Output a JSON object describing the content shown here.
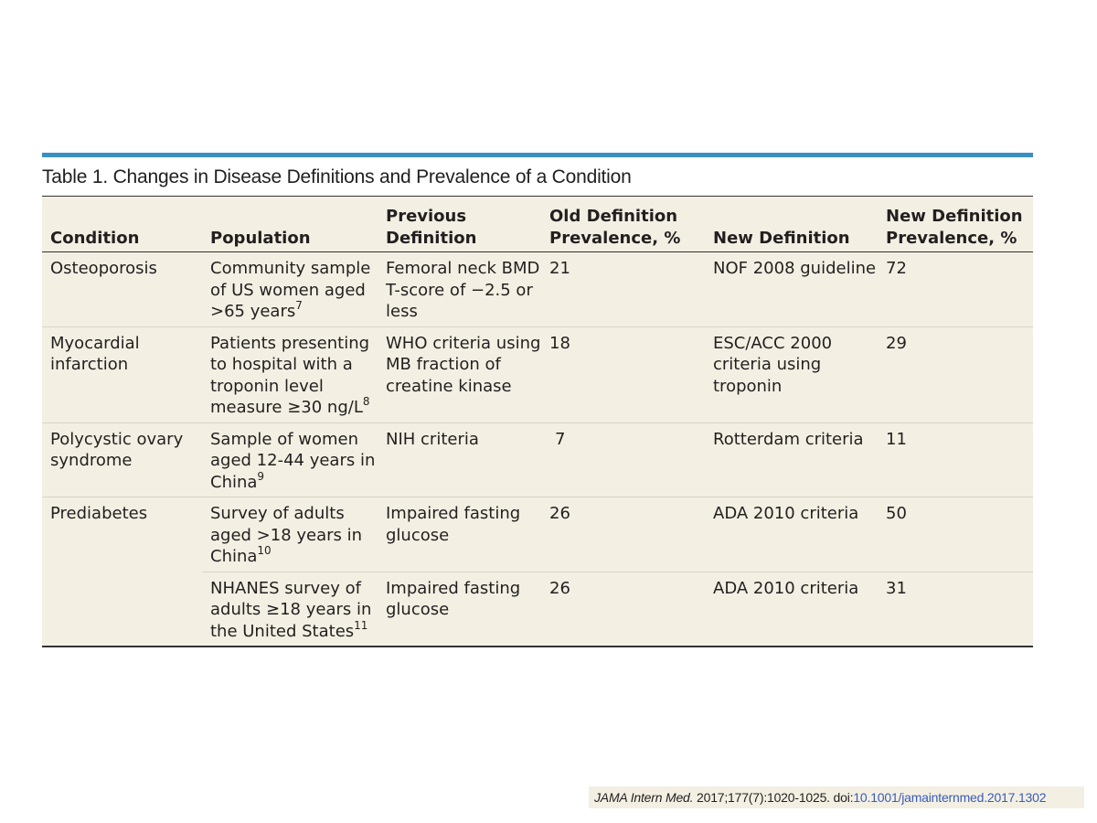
{
  "table": {
    "title": "Table 1. Changes in Disease Definitions and Prevalence of a Condition",
    "headers": {
      "condition": "Condition",
      "population": "Population",
      "previous_definition_line1": "Previous",
      "previous_definition_line2": "Definition",
      "old_prevalence_line1": "Old Definition",
      "old_prevalence_line2": "Prevalence, %",
      "new_definition": "New Definition",
      "new_prevalence_line1": "New Definition",
      "new_prevalence_line2": "Prevalence, %"
    },
    "rows": [
      {
        "condition": "Osteoporosis",
        "population": "Community sample of US women aged >65 years",
        "population_ref": "7",
        "previous_definition": "Femoral neck BMD T-score of −2.5 or less",
        "old_prevalence": "21",
        "new_definition": "NOF 2008 guideline",
        "new_prevalence": "72"
      },
      {
        "condition": "Myocardial infarction",
        "population": "Patients presenting to hospital with a troponin level measure ≥30 ng/L",
        "population_ref": "8",
        "previous_definition": "WHO criteria using MB fraction of creatine kinase",
        "old_prevalence": "18",
        "new_definition": "ESC/ACC 2000 criteria using troponin",
        "new_prevalence": "29"
      },
      {
        "condition": "Polycystic ovary syndrome",
        "population": "Sample of women aged 12-44 years in China",
        "population_ref": "9",
        "previous_definition": "NIH criteria",
        "old_prevalence": "7",
        "new_definition": "Rotterdam criteria",
        "new_prevalence": "11"
      },
      {
        "condition": "Prediabetes",
        "population": "Survey of adults aged >18 years in China",
        "population_ref": "10",
        "previous_definition": "Impaired fasting glucose",
        "old_prevalence": "26",
        "new_definition": "ADA 2010 criteria",
        "new_prevalence": "50"
      },
      {
        "condition": "",
        "population": "NHANES survey of adults ≥18 years in the United States",
        "population_ref": "11",
        "previous_definition": "Impaired fasting glucose",
        "old_prevalence": "26",
        "new_definition": "ADA 2010 criteria",
        "new_prevalence": "31"
      }
    ]
  },
  "citation": {
    "journal": "JAMA Intern Med.",
    "details": " 2017;177(7):1020-1025. doi:",
    "doi": "10.1001/jamainternmed.2017.1302"
  },
  "colors": {
    "rule_accent": "#3a8fc2",
    "table_background": "#f3f0e3",
    "doi_link": "#3a5ab8"
  }
}
